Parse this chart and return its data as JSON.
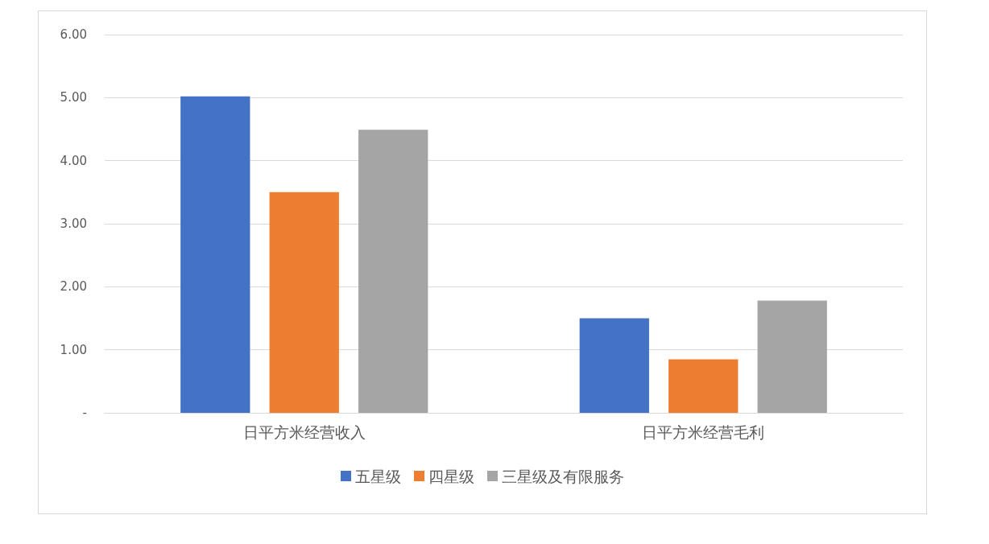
{
  "chart_data": {
    "type": "bar",
    "categories": [
      "日平方米经营收入",
      "日平方米经营毛利"
    ],
    "series": [
      {
        "name": "五星级",
        "color": "#4472c4",
        "values": [
          5.02,
          1.5
        ]
      },
      {
        "name": "四星级",
        "color": "#ed7d31",
        "values": [
          3.5,
          0.85
        ]
      },
      {
        "name": "三星级及有限服务",
        "color": "#a5a5a5",
        "values": [
          4.49,
          1.78
        ]
      }
    ],
    "ylim": [
      0,
      6
    ],
    "yticks": [
      {
        "value": 0,
        "label": "-"
      },
      {
        "value": 1,
        "label": "1.00"
      },
      {
        "value": 2,
        "label": "2.00"
      },
      {
        "value": 3,
        "label": "3.00"
      },
      {
        "value": 4,
        "label": "4.00"
      },
      {
        "value": 5,
        "label": "5.00"
      },
      {
        "value": 6,
        "label": "6.00"
      }
    ],
    "grid": "y",
    "legend": "bottom"
  }
}
